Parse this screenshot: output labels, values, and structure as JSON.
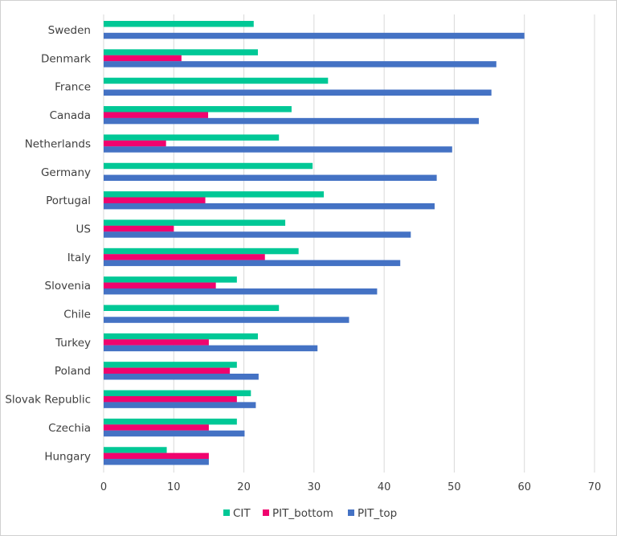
{
  "chart_data": {
    "type": "bar",
    "orientation": "horizontal",
    "categories": [
      "Sweden",
      "Denmark",
      "France",
      "Canada",
      "Netherlands",
      "Germany",
      "Portugal",
      "US",
      "Italy",
      "Slovenia",
      "Chile",
      "Turkey",
      "Poland",
      "Slovak Republic",
      "Czechia",
      "Hungary"
    ],
    "series": [
      {
        "name": "CIT",
        "color": "#00c896",
        "values": [
          21.4,
          22.0,
          32.0,
          26.8,
          25.0,
          29.8,
          31.4,
          25.9,
          27.8,
          19.0,
          25.0,
          22.0,
          19.0,
          21.0,
          19.0,
          9.0
        ]
      },
      {
        "name": "PIT_bottom",
        "color": "#f0046e",
        "values": [
          null,
          11.1,
          null,
          14.9,
          8.9,
          null,
          14.5,
          10.0,
          23.0,
          16.0,
          null,
          15.0,
          18.0,
          19.0,
          15.0,
          15.0
        ]
      },
      {
        "name": "PIT_top",
        "color": "#4472c4",
        "values": [
          60.0,
          56.0,
          55.3,
          53.5,
          49.7,
          47.5,
          47.2,
          43.8,
          42.3,
          39.0,
          35.0,
          30.5,
          22.1,
          21.7,
          20.1,
          15.0
        ]
      }
    ],
    "xlim": [
      0,
      70
    ],
    "xticks": [
      "0",
      "10",
      "20",
      "30",
      "40",
      "50",
      "60",
      "70"
    ],
    "grid": true,
    "legend": "bottom",
    "title": "",
    "xlabel": "",
    "ylabel": ""
  }
}
